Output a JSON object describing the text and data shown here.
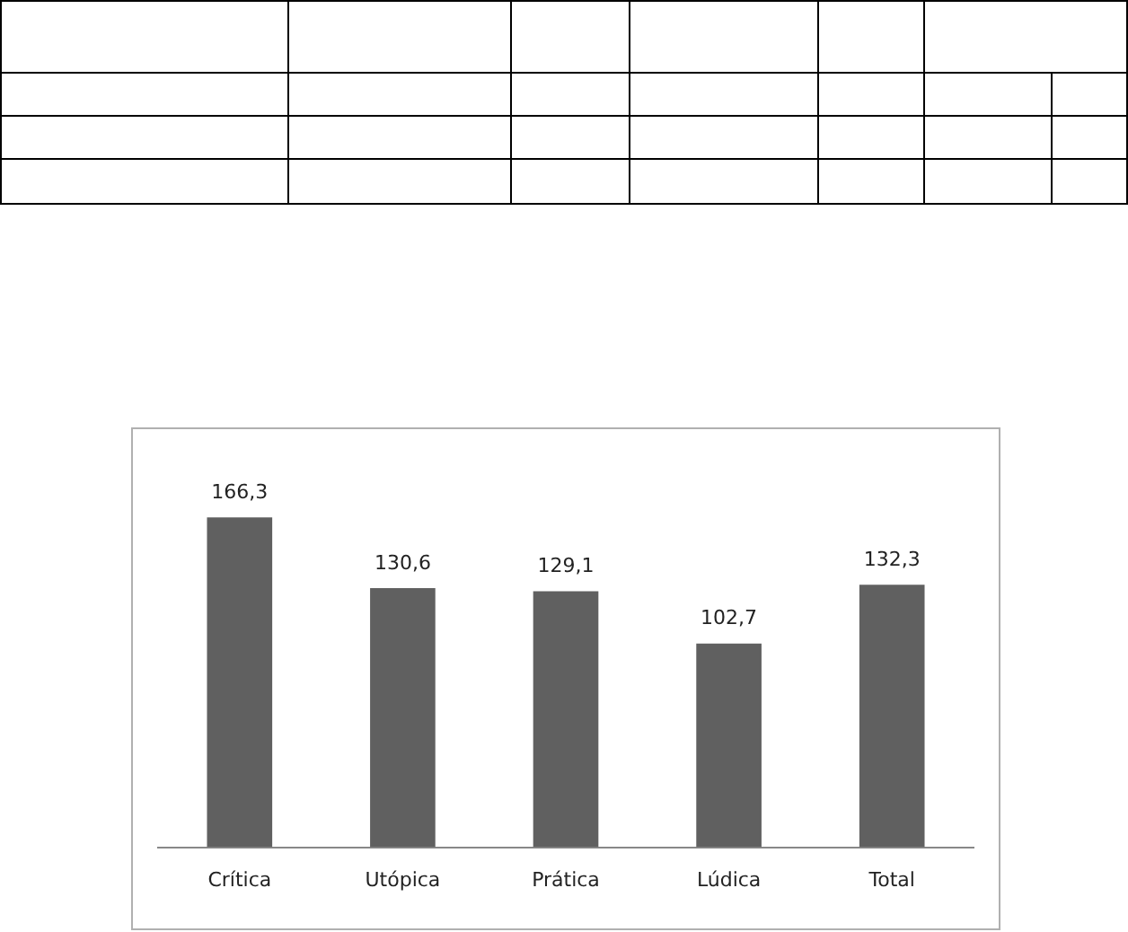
{
  "chart_data": {
    "type": "bar",
    "categories": [
      "Crítica",
      "Utópica",
      "Prática",
      "Lúdica",
      "Total"
    ],
    "values": [
      166.3,
      130.6,
      129.1,
      102.7,
      132.3
    ],
    "value_labels": [
      "166,3",
      "130,6",
      "129,1",
      "102,7",
      "132,3"
    ],
    "color": "#606060",
    "grid": false,
    "legend": false
  }
}
